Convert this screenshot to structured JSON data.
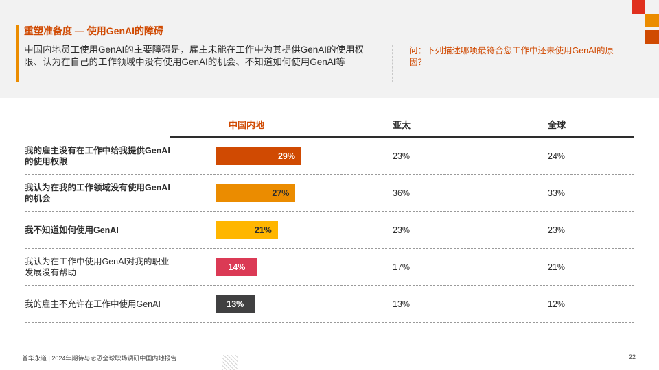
{
  "header": {
    "title": "重塑准备度 — 使用GenAI的障碍",
    "summary": "中国内地员工使用GenAI的主要障碍是，雇主未能在工作中为其提供GenAI的使用权限、认为在自己的工作领域中没有使用GenAI的机会、不知道如何使用GenAI等",
    "question": "问：下列描述哪项最符合您工作中还未使用GenAI的原因？"
  },
  "chart_data": {
    "type": "bar",
    "categories": [
      "我的雇主没有在工作中给我提供GenAI的使用权限",
      "我认为在我的工作领域没有使用GenAI的机会",
      "我不知道如何使用GenAI",
      "我认为在工作中使用GenAI对我的职业发展没有帮助",
      "我的雇主不允许在工作中使用GenAI"
    ],
    "category_bold": [
      true,
      true,
      true,
      false,
      false
    ],
    "series": [
      {
        "name": "中国内地",
        "values": [
          29,
          27,
          21,
          14,
          13
        ],
        "labels": [
          "29%",
          "27%",
          "21%",
          "14%",
          "13%"
        ]
      },
      {
        "name": "亚太",
        "values": [
          23,
          36,
          23,
          17,
          13
        ],
        "labels": [
          "23%",
          "36%",
          "23%",
          "17%",
          "13%"
        ]
      },
      {
        "name": "全球",
        "values": [
          24,
          33,
          23,
          21,
          12
        ],
        "labels": [
          "24%",
          "33%",
          "23%",
          "21%",
          "12%"
        ]
      }
    ],
    "bar_colors": [
      "#d04a02",
      "#eb8c00",
      "#ffb600",
      "#db3a55",
      "#404041"
    ],
    "bar_label_colors": [
      "#ffffff",
      "#2d2d2d",
      "#2d2d2d",
      "#ffffff",
      "#ffffff"
    ]
  },
  "footer": {
    "source": "普华永道 | 2024年期待与忐忑全球职场调研中国内地报告",
    "page": "22"
  }
}
